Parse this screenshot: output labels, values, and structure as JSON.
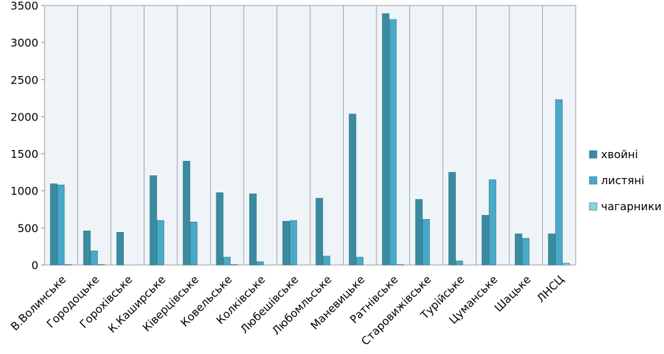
{
  "chart_data": {
    "type": "bar",
    "title": "",
    "xlabel": "",
    "ylabel": "",
    "ylim": [
      0,
      3500
    ],
    "yticks": [
      0,
      500,
      1000,
      1500,
      2000,
      2500,
      3000,
      3500
    ],
    "grid": "vertical category separators",
    "legend_position": "right",
    "categories": [
      "В.Волинське",
      "Городоцьке",
      "Горохівське",
      "К.Каширське",
      "Ківерцівське",
      "Ковельське",
      "Колківське",
      "Любешівське",
      "Любомльське",
      "Маневицьке",
      "Ратнівське",
      "Старовижівське",
      "Турійське",
      "Цуманське",
      "Шацьке",
      "ЛНСЦ"
    ],
    "series": [
      {
        "name": "хвойні",
        "color": "#3a8ba0",
        "values": [
          1095,
          460,
          440,
          1205,
          1400,
          975,
          960,
          590,
          900,
          2035,
          3390,
          885,
          1250,
          670,
          420,
          420
        ]
      },
      {
        "name": "листяні",
        "color": "#48aac8",
        "values": [
          1080,
          190,
          0,
          600,
          580,
          105,
          45,
          600,
          120,
          105,
          3310,
          615,
          55,
          1150,
          360,
          2230
        ]
      },
      {
        "name": "чагарники",
        "color": "#93cedf",
        "values": [
          5,
          5,
          0,
          0,
          0,
          5,
          0,
          0,
          0,
          0,
          5,
          0,
          0,
          0,
          0,
          25
        ]
      }
    ]
  }
}
